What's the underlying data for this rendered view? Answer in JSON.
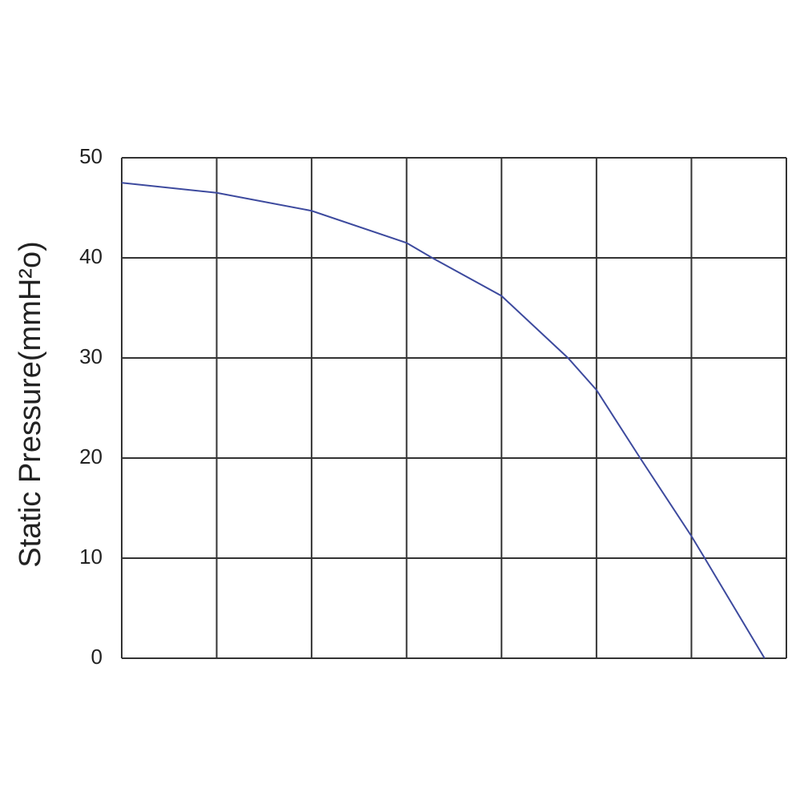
{
  "chart_data": {
    "type": "line",
    "y_label": "Static Pressure(mmH²o)",
    "x": [
      0,
      1,
      2,
      3,
      3.27,
      4,
      4.7,
      5,
      5.46,
      6,
      6.14,
      6.77
    ],
    "series": [
      {
        "color": "#3d4a9e",
        "values": [
          47.5,
          46.5,
          44.7,
          41.5,
          40,
          36.2,
          30,
          26.8,
          20,
          12.2,
          10,
          0
        ]
      }
    ],
    "xlim": [
      0,
      7
    ],
    "xticks": [
      0,
      1,
      2,
      3,
      4,
      5,
      6,
      7
    ],
    "show_xtick_labels": false,
    "ylim": [
      0,
      50
    ],
    "yticks": [
      0,
      10,
      20,
      30,
      40,
      50
    ],
    "grid": true
  }
}
